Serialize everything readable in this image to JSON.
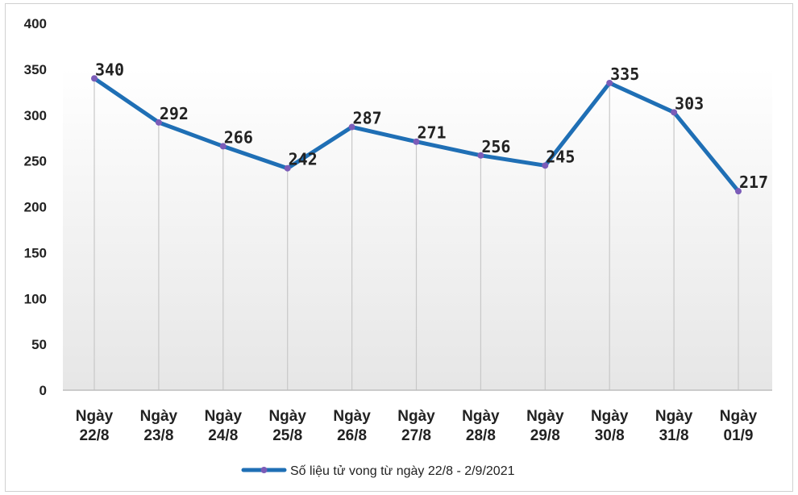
{
  "chart_data": {
    "type": "line",
    "title": "",
    "xlabel": "",
    "ylabel": "",
    "categories": [
      [
        "Ngày",
        "22/8"
      ],
      [
        "Ngày",
        "23/8"
      ],
      [
        "Ngày",
        "24/8"
      ],
      [
        "Ngày",
        "25/8"
      ],
      [
        "Ngày",
        "26/8"
      ],
      [
        "Ngày",
        "27/8"
      ],
      [
        "Ngày",
        "28/8"
      ],
      [
        "Ngày",
        "29/8"
      ],
      [
        "Ngày",
        "30/8"
      ],
      [
        "Ngày",
        "31/8"
      ],
      [
        "Ngày",
        "01/9"
      ]
    ],
    "series": [
      {
        "name": "Số liệu tử vong từ ngày 22/8 - 2/9/2021",
        "values": [
          340,
          292,
          266,
          242,
          287,
          271,
          256,
          245,
          335,
          303,
          217
        ]
      }
    ],
    "ylim": [
      0,
      400
    ],
    "yticks": [
      "0",
      "50",
      "100",
      "150",
      "200",
      "250",
      "300",
      "350",
      "400"
    ],
    "grid": "vertical",
    "legend": "bottom",
    "colors": {
      "line": "#1f6fb5",
      "marker": "#7b5cb8",
      "grid": "#c8c8c8",
      "plot_bg_top": "#ffffff",
      "plot_bg_bottom": "#e6e6e6"
    }
  }
}
